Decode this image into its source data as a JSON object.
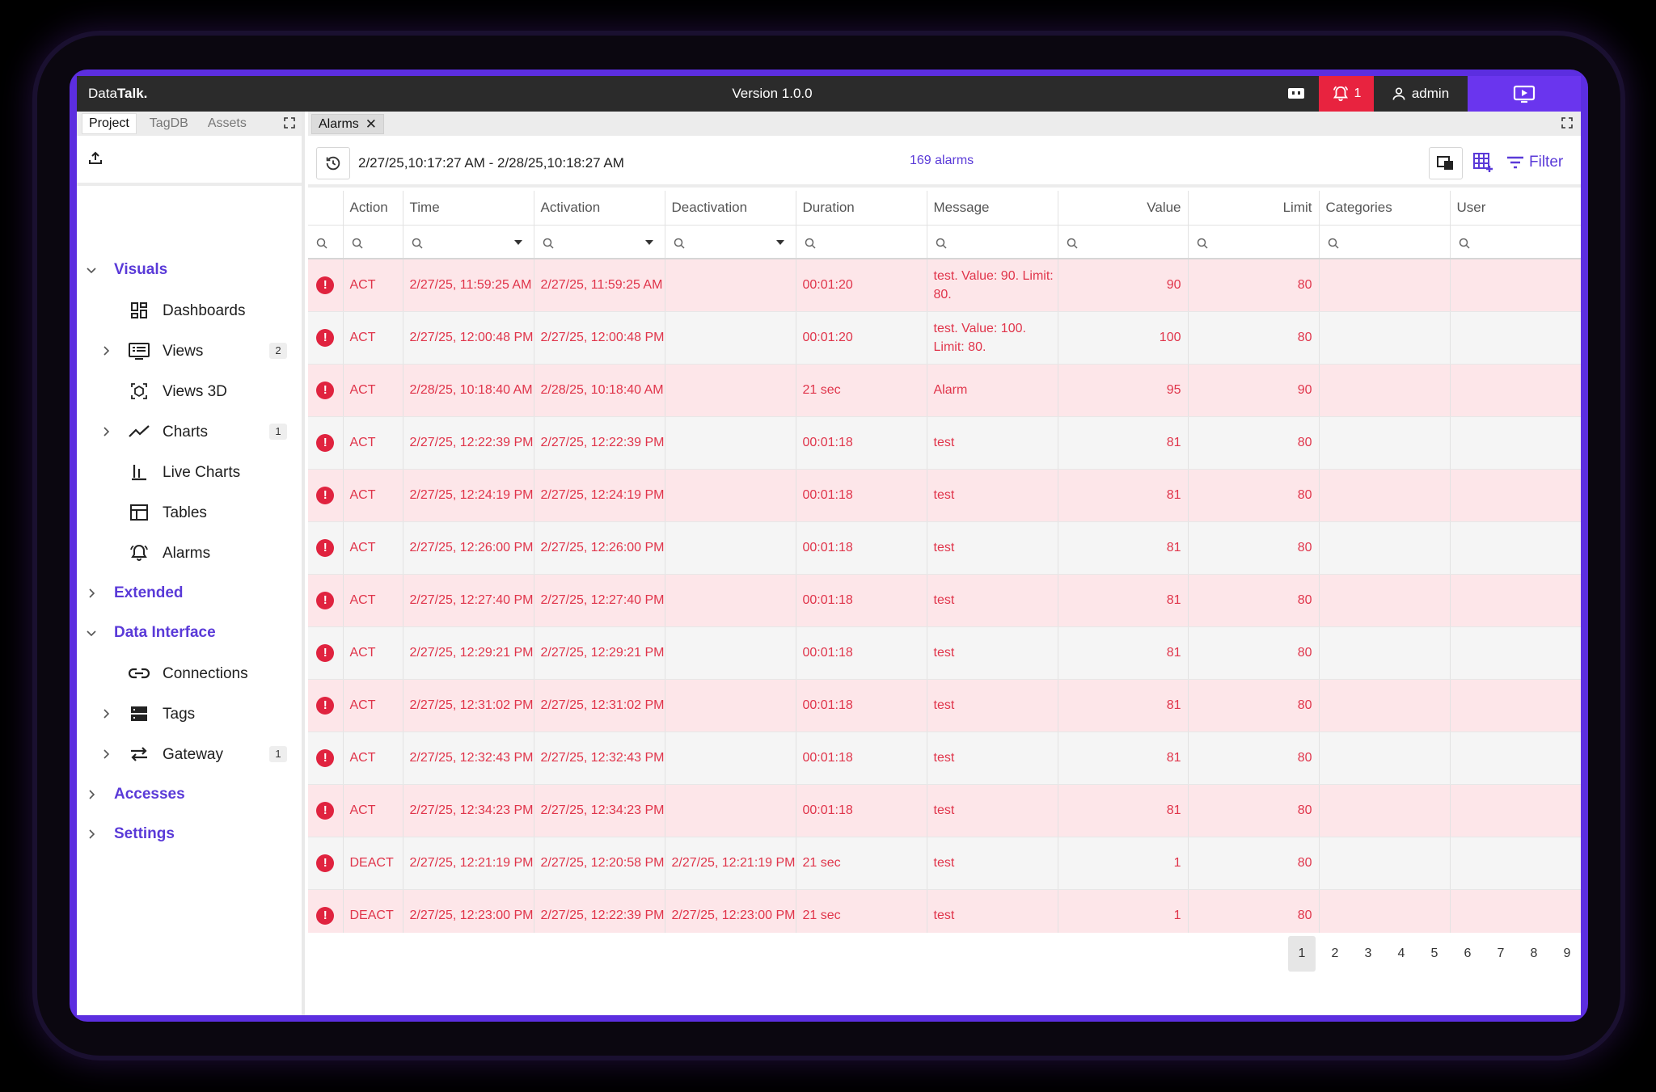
{
  "topbar": {
    "brand_prefix": "Data",
    "brand_bold": "Talk.",
    "version": "Version 1.0.0",
    "alarm_count": "1",
    "user": "admin"
  },
  "left_tabs": [
    {
      "label": "Project",
      "active": true
    },
    {
      "label": "TagDB",
      "active": false
    },
    {
      "label": "Assets",
      "active": false
    }
  ],
  "nav": {
    "visuals": "Visuals",
    "dashboards": "Dashboards",
    "views": "Views",
    "views_badge": "2",
    "views3d": "Views 3D",
    "charts": "Charts",
    "charts_badge": "1",
    "livecharts": "Live Charts",
    "tables": "Tables",
    "alarms": "Alarms",
    "extended": "Extended",
    "datainterface": "Data Interface",
    "connections": "Connections",
    "tags": "Tags",
    "gateway": "Gateway",
    "gateway_badge": "1",
    "accesses": "Accesses",
    "settings": "Settings"
  },
  "doc_tab": {
    "label": "Alarms"
  },
  "toolbar": {
    "range": "2/27/25,10:17:27 AM - 2/28/25,10:18:27 AM",
    "count": "169 alarms",
    "filter": "Filter"
  },
  "columns": [
    "",
    "Action",
    "Time",
    "Activation",
    "Deactivation",
    "Duration",
    "Message",
    "Value",
    "Limit",
    "Categories",
    "User"
  ],
  "rows": [
    {
      "action": "ACT",
      "time": "2/27/25, 11:59:25 AM",
      "activation": "2/27/25, 11:59:25 AM",
      "deactivation": "",
      "duration": "00:01:20",
      "message": "test. Value: 90. Limit: 80.",
      "value": "90",
      "limit": "80"
    },
    {
      "action": "ACT",
      "time": "2/27/25, 12:00:48 PM",
      "activation": "2/27/25, 12:00:48 PM",
      "deactivation": "",
      "duration": "00:01:20",
      "message": "test. Value: 100. Limit: 80.",
      "value": "100",
      "limit": "80"
    },
    {
      "action": "ACT",
      "time": "2/28/25, 10:18:40 AM",
      "activation": "2/28/25, 10:18:40 AM",
      "deactivation": "",
      "duration": "21 sec",
      "message": "Alarm",
      "value": "95",
      "limit": "90"
    },
    {
      "action": "ACT",
      "time": "2/27/25, 12:22:39 PM",
      "activation": "2/27/25, 12:22:39 PM",
      "deactivation": "",
      "duration": "00:01:18",
      "message": "test",
      "value": "81",
      "limit": "80"
    },
    {
      "action": "ACT",
      "time": "2/27/25, 12:24:19 PM",
      "activation": "2/27/25, 12:24:19 PM",
      "deactivation": "",
      "duration": "00:01:18",
      "message": "test",
      "value": "81",
      "limit": "80"
    },
    {
      "action": "ACT",
      "time": "2/27/25, 12:26:00 PM",
      "activation": "2/27/25, 12:26:00 PM",
      "deactivation": "",
      "duration": "00:01:18",
      "message": "test",
      "value": "81",
      "limit": "80"
    },
    {
      "action": "ACT",
      "time": "2/27/25, 12:27:40 PM",
      "activation": "2/27/25, 12:27:40 PM",
      "deactivation": "",
      "duration": "00:01:18",
      "message": "test",
      "value": "81",
      "limit": "80"
    },
    {
      "action": "ACT",
      "time": "2/27/25, 12:29:21 PM",
      "activation": "2/27/25, 12:29:21 PM",
      "deactivation": "",
      "duration": "00:01:18",
      "message": "test",
      "value": "81",
      "limit": "80"
    },
    {
      "action": "ACT",
      "time": "2/27/25, 12:31:02 PM",
      "activation": "2/27/25, 12:31:02 PM",
      "deactivation": "",
      "duration": "00:01:18",
      "message": "test",
      "value": "81",
      "limit": "80"
    },
    {
      "action": "ACT",
      "time": "2/27/25, 12:32:43 PM",
      "activation": "2/27/25, 12:32:43 PM",
      "deactivation": "",
      "duration": "00:01:18",
      "message": "test",
      "value": "81",
      "limit": "80"
    },
    {
      "action": "ACT",
      "time": "2/27/25, 12:34:23 PM",
      "activation": "2/27/25, 12:34:23 PM",
      "deactivation": "",
      "duration": "00:01:18",
      "message": "test",
      "value": "81",
      "limit": "80"
    },
    {
      "action": "DEACT",
      "time": "2/27/25, 12:21:19 PM",
      "activation": "2/27/25, 12:20:58 PM",
      "deactivation": "2/27/25, 12:21:19 PM",
      "duration": "21 sec",
      "message": "test",
      "value": "1",
      "limit": "80"
    },
    {
      "action": "DEACT",
      "time": "2/27/25, 12:23:00 PM",
      "activation": "2/27/25, 12:22:39 PM",
      "deactivation": "2/27/25, 12:23:00 PM",
      "duration": "21 sec",
      "message": "test",
      "value": "1",
      "limit": "80"
    }
  ],
  "pager": {
    "pages": [
      "1",
      "2",
      "3",
      "4",
      "5",
      "6",
      "7",
      "8",
      "9"
    ],
    "active": "1"
  },
  "colors": {
    "accent": "#5a3ad8",
    "alarm": "#e0233f",
    "row_alarm_bg": "#fde6e9",
    "topbar": "#2b2b2b"
  }
}
